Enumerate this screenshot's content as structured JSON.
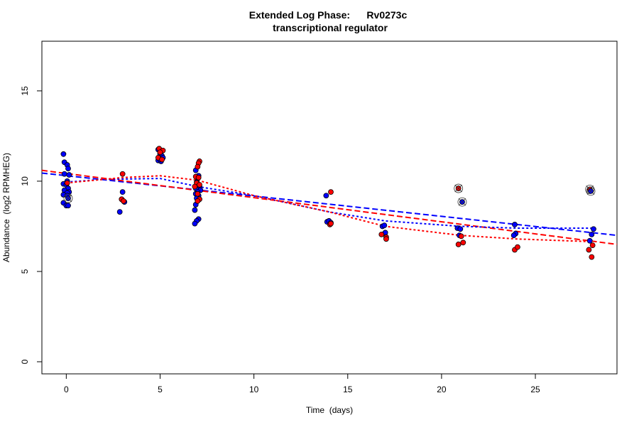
{
  "chart_data": {
    "type": "scatter",
    "title_line1": "Extended Log Phase:      Rv0273c",
    "title_line2": "transcriptional regulator",
    "xlabel": "Time  (days)",
    "ylabel": "Abundance  (log2 RPMHEG)",
    "xlim": [
      -1.3,
      29.35
    ],
    "ylim": [
      -0.67,
      17.75
    ],
    "xticks": [
      0,
      5,
      10,
      15,
      20,
      25
    ],
    "yticks": [
      0,
      5,
      10,
      15
    ],
    "grid": false,
    "colors": {
      "blue": "#0000ff",
      "red": "#ff0000"
    },
    "series": [
      {
        "color": "blue",
        "points": [
          [
            -0.15,
            11.5
          ],
          [
            -0.1,
            11.05
          ],
          [
            0.05,
            10.9
          ],
          [
            0.1,
            10.7
          ],
          [
            -0.1,
            10.4
          ],
          [
            0.15,
            10.35
          ],
          [
            0.05,
            10.0
          ],
          [
            -0.15,
            9.85
          ],
          [
            0.0,
            9.8
          ],
          [
            0.1,
            9.6
          ],
          [
            -0.1,
            9.5
          ],
          [
            0.15,
            9.4
          ],
          [
            0.05,
            9.35
          ],
          [
            -0.15,
            9.25
          ],
          [
            0.05,
            9.2
          ],
          [
            -0.15,
            8.8
          ],
          [
            0.0,
            8.65
          ],
          [
            0.1,
            8.65
          ],
          [
            3.0,
            9.4
          ],
          [
            3.1,
            8.85
          ],
          [
            2.85,
            8.3
          ],
          [
            4.9,
            11.75
          ],
          [
            5.0,
            11.5
          ],
          [
            5.1,
            11.4
          ],
          [
            4.95,
            11.3
          ],
          [
            5.15,
            11.3
          ],
          [
            4.9,
            11.15
          ],
          [
            5.05,
            11.1
          ],
          [
            5.0,
            11.2
          ],
          [
            6.9,
            10.6
          ],
          [
            7.05,
            10.3
          ],
          [
            6.95,
            9.95
          ],
          [
            7.1,
            9.7
          ],
          [
            6.9,
            9.6
          ],
          [
            7.15,
            9.5
          ],
          [
            7.0,
            9.4
          ],
          [
            6.9,
            9.3
          ],
          [
            7.05,
            9.2
          ],
          [
            6.95,
            9.05
          ],
          [
            6.9,
            8.7
          ],
          [
            6.85,
            8.4
          ],
          [
            7.05,
            7.9
          ],
          [
            6.95,
            7.8
          ],
          [
            6.85,
            7.65
          ],
          [
            13.85,
            9.2
          ],
          [
            13.9,
            7.75
          ],
          [
            14.0,
            7.8
          ],
          [
            14.1,
            7.7
          ],
          [
            16.85,
            7.5
          ],
          [
            16.95,
            7.55
          ],
          [
            17.0,
            7.15
          ],
          [
            20.85,
            7.4
          ],
          [
            21.0,
            7.35
          ],
          [
            20.95,
            7.0
          ],
          [
            23.9,
            7.6
          ],
          [
            23.95,
            7.1
          ],
          [
            23.85,
            7.0
          ],
          [
            28.1,
            7.35
          ],
          [
            28.0,
            7.05
          ],
          [
            27.9,
            6.7
          ]
        ]
      },
      {
        "color": "red",
        "points": [
          [
            0.05,
            9.9
          ],
          [
            3.0,
            10.4
          ],
          [
            2.95,
            9.0
          ],
          [
            3.05,
            8.9
          ],
          [
            4.95,
            11.8
          ],
          [
            5.15,
            11.7
          ],
          [
            5.0,
            11.6
          ],
          [
            4.9,
            11.3
          ],
          [
            5.1,
            11.2
          ],
          [
            7.1,
            11.1
          ],
          [
            7.05,
            11.0
          ],
          [
            7.0,
            10.8
          ],
          [
            6.9,
            10.25
          ],
          [
            7.05,
            10.2
          ],
          [
            6.95,
            9.9
          ],
          [
            7.1,
            9.8
          ],
          [
            6.85,
            9.7
          ],
          [
            7.0,
            9.3
          ],
          [
            7.1,
            9.0
          ],
          [
            7.0,
            8.9
          ],
          [
            14.1,
            9.4
          ],
          [
            14.05,
            7.6
          ],
          [
            14.1,
            7.65
          ],
          [
            16.8,
            7.05
          ],
          [
            17.05,
            6.9
          ],
          [
            17.05,
            6.8
          ],
          [
            20.9,
            6.5
          ],
          [
            21.15,
            6.6
          ],
          [
            21.05,
            6.95
          ],
          [
            23.9,
            6.2
          ],
          [
            24.05,
            6.35
          ],
          [
            27.85,
            6.2
          ],
          [
            28.05,
            6.45
          ],
          [
            28.0,
            5.8
          ]
        ]
      }
    ],
    "outliers": [
      {
        "color": "blue",
        "x": 0.1,
        "y": 9.05
      },
      {
        "color": "red",
        "x": 20.9,
        "y": 9.6
      },
      {
        "color": "blue",
        "x": 21.1,
        "y": 8.85
      },
      {
        "color": "red",
        "x": 27.9,
        "y": 9.55
      },
      {
        "color": "blue",
        "x": 27.95,
        "y": 9.45
      }
    ],
    "fits": [
      {
        "color": "blue",
        "style": "dashed",
        "points": [
          [
            -1.3,
            10.45
          ],
          [
            29.35,
            7.0
          ]
        ]
      },
      {
        "color": "red",
        "style": "dashed",
        "points": [
          [
            -1.3,
            10.6
          ],
          [
            29.35,
            6.5
          ]
        ]
      },
      {
        "color": "blue",
        "style": "dotted",
        "points": [
          [
            0,
            9.95
          ],
          [
            2,
            10.1
          ],
          [
            5,
            10.15
          ],
          [
            7,
            9.7
          ],
          [
            10,
            9.2
          ],
          [
            14,
            8.3
          ],
          [
            17,
            7.8
          ],
          [
            21,
            7.5
          ],
          [
            24,
            7.4
          ],
          [
            28,
            7.4
          ]
        ]
      },
      {
        "color": "red",
        "style": "dotted",
        "points": [
          [
            0,
            9.9
          ],
          [
            3,
            10.2
          ],
          [
            5,
            10.3
          ],
          [
            7,
            10.05
          ],
          [
            10,
            9.2
          ],
          [
            14,
            8.3
          ],
          [
            17,
            7.5
          ],
          [
            21,
            7.0
          ],
          [
            24,
            6.8
          ],
          [
            28,
            6.65
          ]
        ]
      }
    ]
  }
}
